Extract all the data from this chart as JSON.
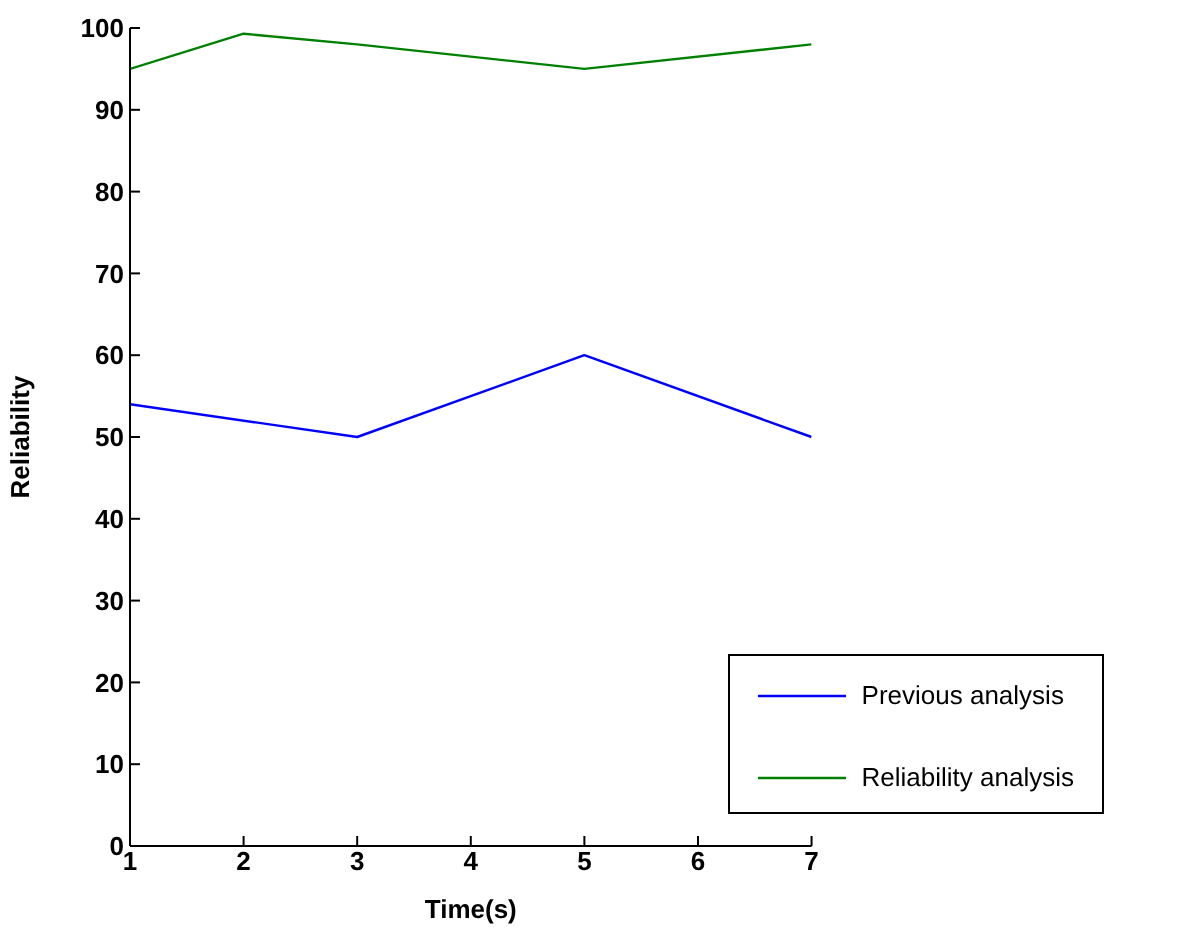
{
  "chart_data": {
    "type": "line",
    "xlabel": "Time(s)",
    "ylabel": "Reliability",
    "xlim": [
      1,
      7
    ],
    "xticks": [
      1,
      2,
      3,
      4,
      5,
      6,
      7
    ],
    "ylim": [
      0,
      100
    ],
    "yticks": [
      0,
      10,
      20,
      30,
      40,
      50,
      60,
      70,
      80,
      90,
      100
    ],
    "grid": false,
    "legend": "bottom right",
    "marker": "none",
    "line_style": "solid",
    "series": [
      {
        "name": "Previous analysis",
        "color": "#0000ff",
        "x": [
          1,
          3,
          5,
          7
        ],
        "values": [
          54,
          50,
          60,
          50
        ]
      },
      {
        "name": "Reliability analysis",
        "color": "#008000",
        "x": [
          1,
          2,
          3,
          5,
          7
        ],
        "values": [
          95,
          99.3,
          98,
          95,
          98
        ]
      }
    ]
  }
}
